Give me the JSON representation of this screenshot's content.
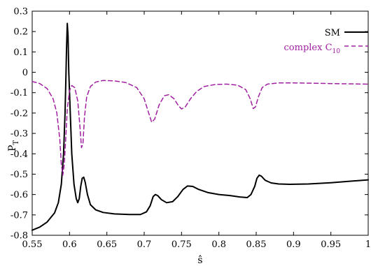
{
  "chart_data": {
    "type": "line",
    "title": "",
    "xlabel": "ŝ",
    "ylabel": "P",
    "ylabel_sub": "T",
    "xlim": [
      0.55,
      1.0
    ],
    "ylim": [
      -0.8,
      0.3
    ],
    "grid": false,
    "legend_position": "top-right",
    "x_ticks": [
      0.55,
      0.6,
      0.65,
      0.7,
      0.75,
      0.8,
      0.85,
      0.9,
      0.95,
      1
    ],
    "x_tick_labels": [
      "0.55",
      "0.6",
      "0.65",
      "0.7",
      "0.75",
      "0.8",
      "0.85",
      "0.9",
      "0.95",
      "1"
    ],
    "y_ticks": [
      -0.8,
      -0.7,
      -0.6,
      -0.5,
      -0.4,
      -0.3,
      -0.2,
      -0.1,
      0,
      0.1,
      0.2,
      0.3
    ],
    "y_tick_labels": [
      "-0.8",
      "-0.7",
      "-0.6",
      "-0.5",
      "-0.4",
      "-0.3",
      "-0.2",
      "-0.1",
      "0",
      "0.1",
      "0.2",
      "0.3"
    ],
    "series": [
      {
        "name": "SM",
        "name_sub": "",
        "color": "#000000",
        "dash": "solid",
        "points": [
          [
            0.55,
            -0.775
          ],
          [
            0.56,
            -0.76
          ],
          [
            0.57,
            -0.735
          ],
          [
            0.58,
            -0.69
          ],
          [
            0.585,
            -0.64
          ],
          [
            0.589,
            -0.55
          ],
          [
            0.592,
            -0.4
          ],
          [
            0.594,
            -0.2
          ],
          [
            0.595,
            -0.05
          ],
          [
            0.596,
            0.12
          ],
          [
            0.597,
            0.24
          ],
          [
            0.598,
            0.18
          ],
          [
            0.599,
            0.0
          ],
          [
            0.601,
            -0.2
          ],
          [
            0.603,
            -0.4
          ],
          [
            0.606,
            -0.55
          ],
          [
            0.609,
            -0.62
          ],
          [
            0.611,
            -0.64
          ],
          [
            0.613,
            -0.62
          ],
          [
            0.615,
            -0.56
          ],
          [
            0.617,
            -0.52
          ],
          [
            0.619,
            -0.515
          ],
          [
            0.621,
            -0.54
          ],
          [
            0.624,
            -0.6
          ],
          [
            0.628,
            -0.65
          ],
          [
            0.635,
            -0.675
          ],
          [
            0.645,
            -0.688
          ],
          [
            0.66,
            -0.695
          ],
          [
            0.68,
            -0.698
          ],
          [
            0.695,
            -0.698
          ],
          [
            0.703,
            -0.685
          ],
          [
            0.708,
            -0.655
          ],
          [
            0.712,
            -0.61
          ],
          [
            0.715,
            -0.6
          ],
          [
            0.718,
            -0.605
          ],
          [
            0.723,
            -0.625
          ],
          [
            0.73,
            -0.64
          ],
          [
            0.738,
            -0.635
          ],
          [
            0.745,
            -0.61
          ],
          [
            0.752,
            -0.575
          ],
          [
            0.758,
            -0.558
          ],
          [
            0.765,
            -0.56
          ],
          [
            0.773,
            -0.575
          ],
          [
            0.785,
            -0.59
          ],
          [
            0.8,
            -0.6
          ],
          [
            0.815,
            -0.605
          ],
          [
            0.828,
            -0.612
          ],
          [
            0.838,
            -0.615
          ],
          [
            0.843,
            -0.6
          ],
          [
            0.848,
            -0.56
          ],
          [
            0.851,
            -0.52
          ],
          [
            0.854,
            -0.505
          ],
          [
            0.857,
            -0.51
          ],
          [
            0.862,
            -0.53
          ],
          [
            0.87,
            -0.543
          ],
          [
            0.88,
            -0.548
          ],
          [
            0.895,
            -0.55
          ],
          [
            0.92,
            -0.548
          ],
          [
            0.95,
            -0.542
          ],
          [
            0.975,
            -0.535
          ],
          [
            1.0,
            -0.528
          ]
        ]
      },
      {
        "name": "complex C",
        "name_sub": "10",
        "color": "#a020a0",
        "dash": "dashed",
        "points": [
          [
            0.55,
            -0.045
          ],
          [
            0.56,
            -0.055
          ],
          [
            0.57,
            -0.08
          ],
          [
            0.578,
            -0.13
          ],
          [
            0.583,
            -0.2
          ],
          [
            0.587,
            -0.33
          ],
          [
            0.589,
            -0.45
          ],
          [
            0.591,
            -0.505
          ],
          [
            0.593,
            -0.45
          ],
          [
            0.595,
            -0.32
          ],
          [
            0.597,
            -0.18
          ],
          [
            0.6,
            -0.09
          ],
          [
            0.603,
            -0.065
          ],
          [
            0.607,
            -0.075
          ],
          [
            0.611,
            -0.14
          ],
          [
            0.614,
            -0.27
          ],
          [
            0.616,
            -0.37
          ],
          [
            0.618,
            -0.35
          ],
          [
            0.62,
            -0.22
          ],
          [
            0.623,
            -0.12
          ],
          [
            0.628,
            -0.07
          ],
          [
            0.635,
            -0.048
          ],
          [
            0.645,
            -0.04
          ],
          [
            0.66,
            -0.042
          ],
          [
            0.675,
            -0.05
          ],
          [
            0.69,
            -0.075
          ],
          [
            0.7,
            -0.13
          ],
          [
            0.706,
            -0.2
          ],
          [
            0.71,
            -0.245
          ],
          [
            0.714,
            -0.23
          ],
          [
            0.72,
            -0.16
          ],
          [
            0.727,
            -0.115
          ],
          [
            0.733,
            -0.11
          ],
          [
            0.74,
            -0.13
          ],
          [
            0.746,
            -0.165
          ],
          [
            0.75,
            -0.18
          ],
          [
            0.755,
            -0.17
          ],
          [
            0.762,
            -0.13
          ],
          [
            0.77,
            -0.095
          ],
          [
            0.78,
            -0.07
          ],
          [
            0.795,
            -0.06
          ],
          [
            0.81,
            -0.058
          ],
          [
            0.825,
            -0.063
          ],
          [
            0.836,
            -0.085
          ],
          [
            0.842,
            -0.13
          ],
          [
            0.846,
            -0.178
          ],
          [
            0.849,
            -0.17
          ],
          [
            0.853,
            -0.12
          ],
          [
            0.858,
            -0.075
          ],
          [
            0.865,
            -0.058
          ],
          [
            0.88,
            -0.052
          ],
          [
            0.9,
            -0.052
          ],
          [
            0.93,
            -0.054
          ],
          [
            0.96,
            -0.056
          ],
          [
            1.0,
            -0.058
          ]
        ]
      }
    ]
  }
}
